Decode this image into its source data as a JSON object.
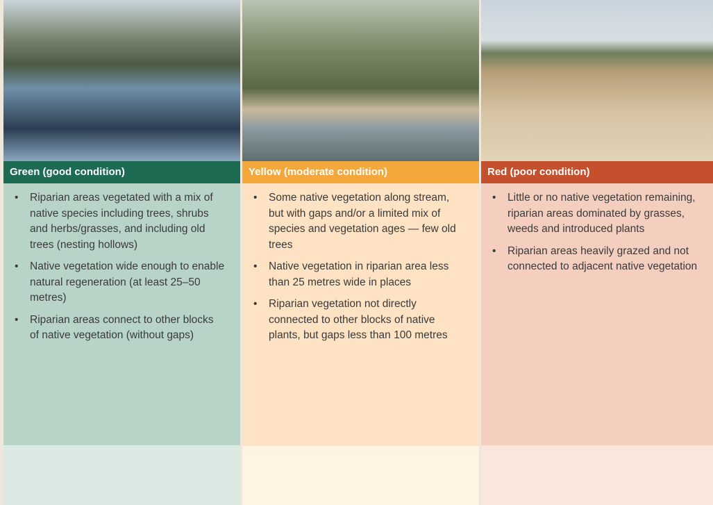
{
  "columns": [
    {
      "title": "Green (good condition)",
      "bullets": [
        "Riparian areas vegetated with a mix of native species including trees, shrubs and herbs/grasses, and including old trees (nesting hollows)",
        "Native vegetation wide enough to enable natural regeneration (at least 25–50 metres)",
        "Riparian areas connect to other blocks of native vegetation (without gaps)"
      ]
    },
    {
      "title": "Yellow (moderate condition)",
      "bullets": [
        "Some native vegetation along stream, but with gaps and/or a limited mix of species and vegetation ages — few old trees",
        "Native vegetation in riparian area less than 25 metres wide in places",
        "Riparian vegetation not directly connected to other blocks of native plants, but gaps less than 100 metres"
      ]
    },
    {
      "title": "Red (poor condition)",
      "bullets": [
        "Little or no native vegetation remaining, riparian areas dominated by grasses, weeds and introduced plants",
        "Riparian areas heavily grazed and not connected to adjacent native vegetation"
      ]
    }
  ]
}
